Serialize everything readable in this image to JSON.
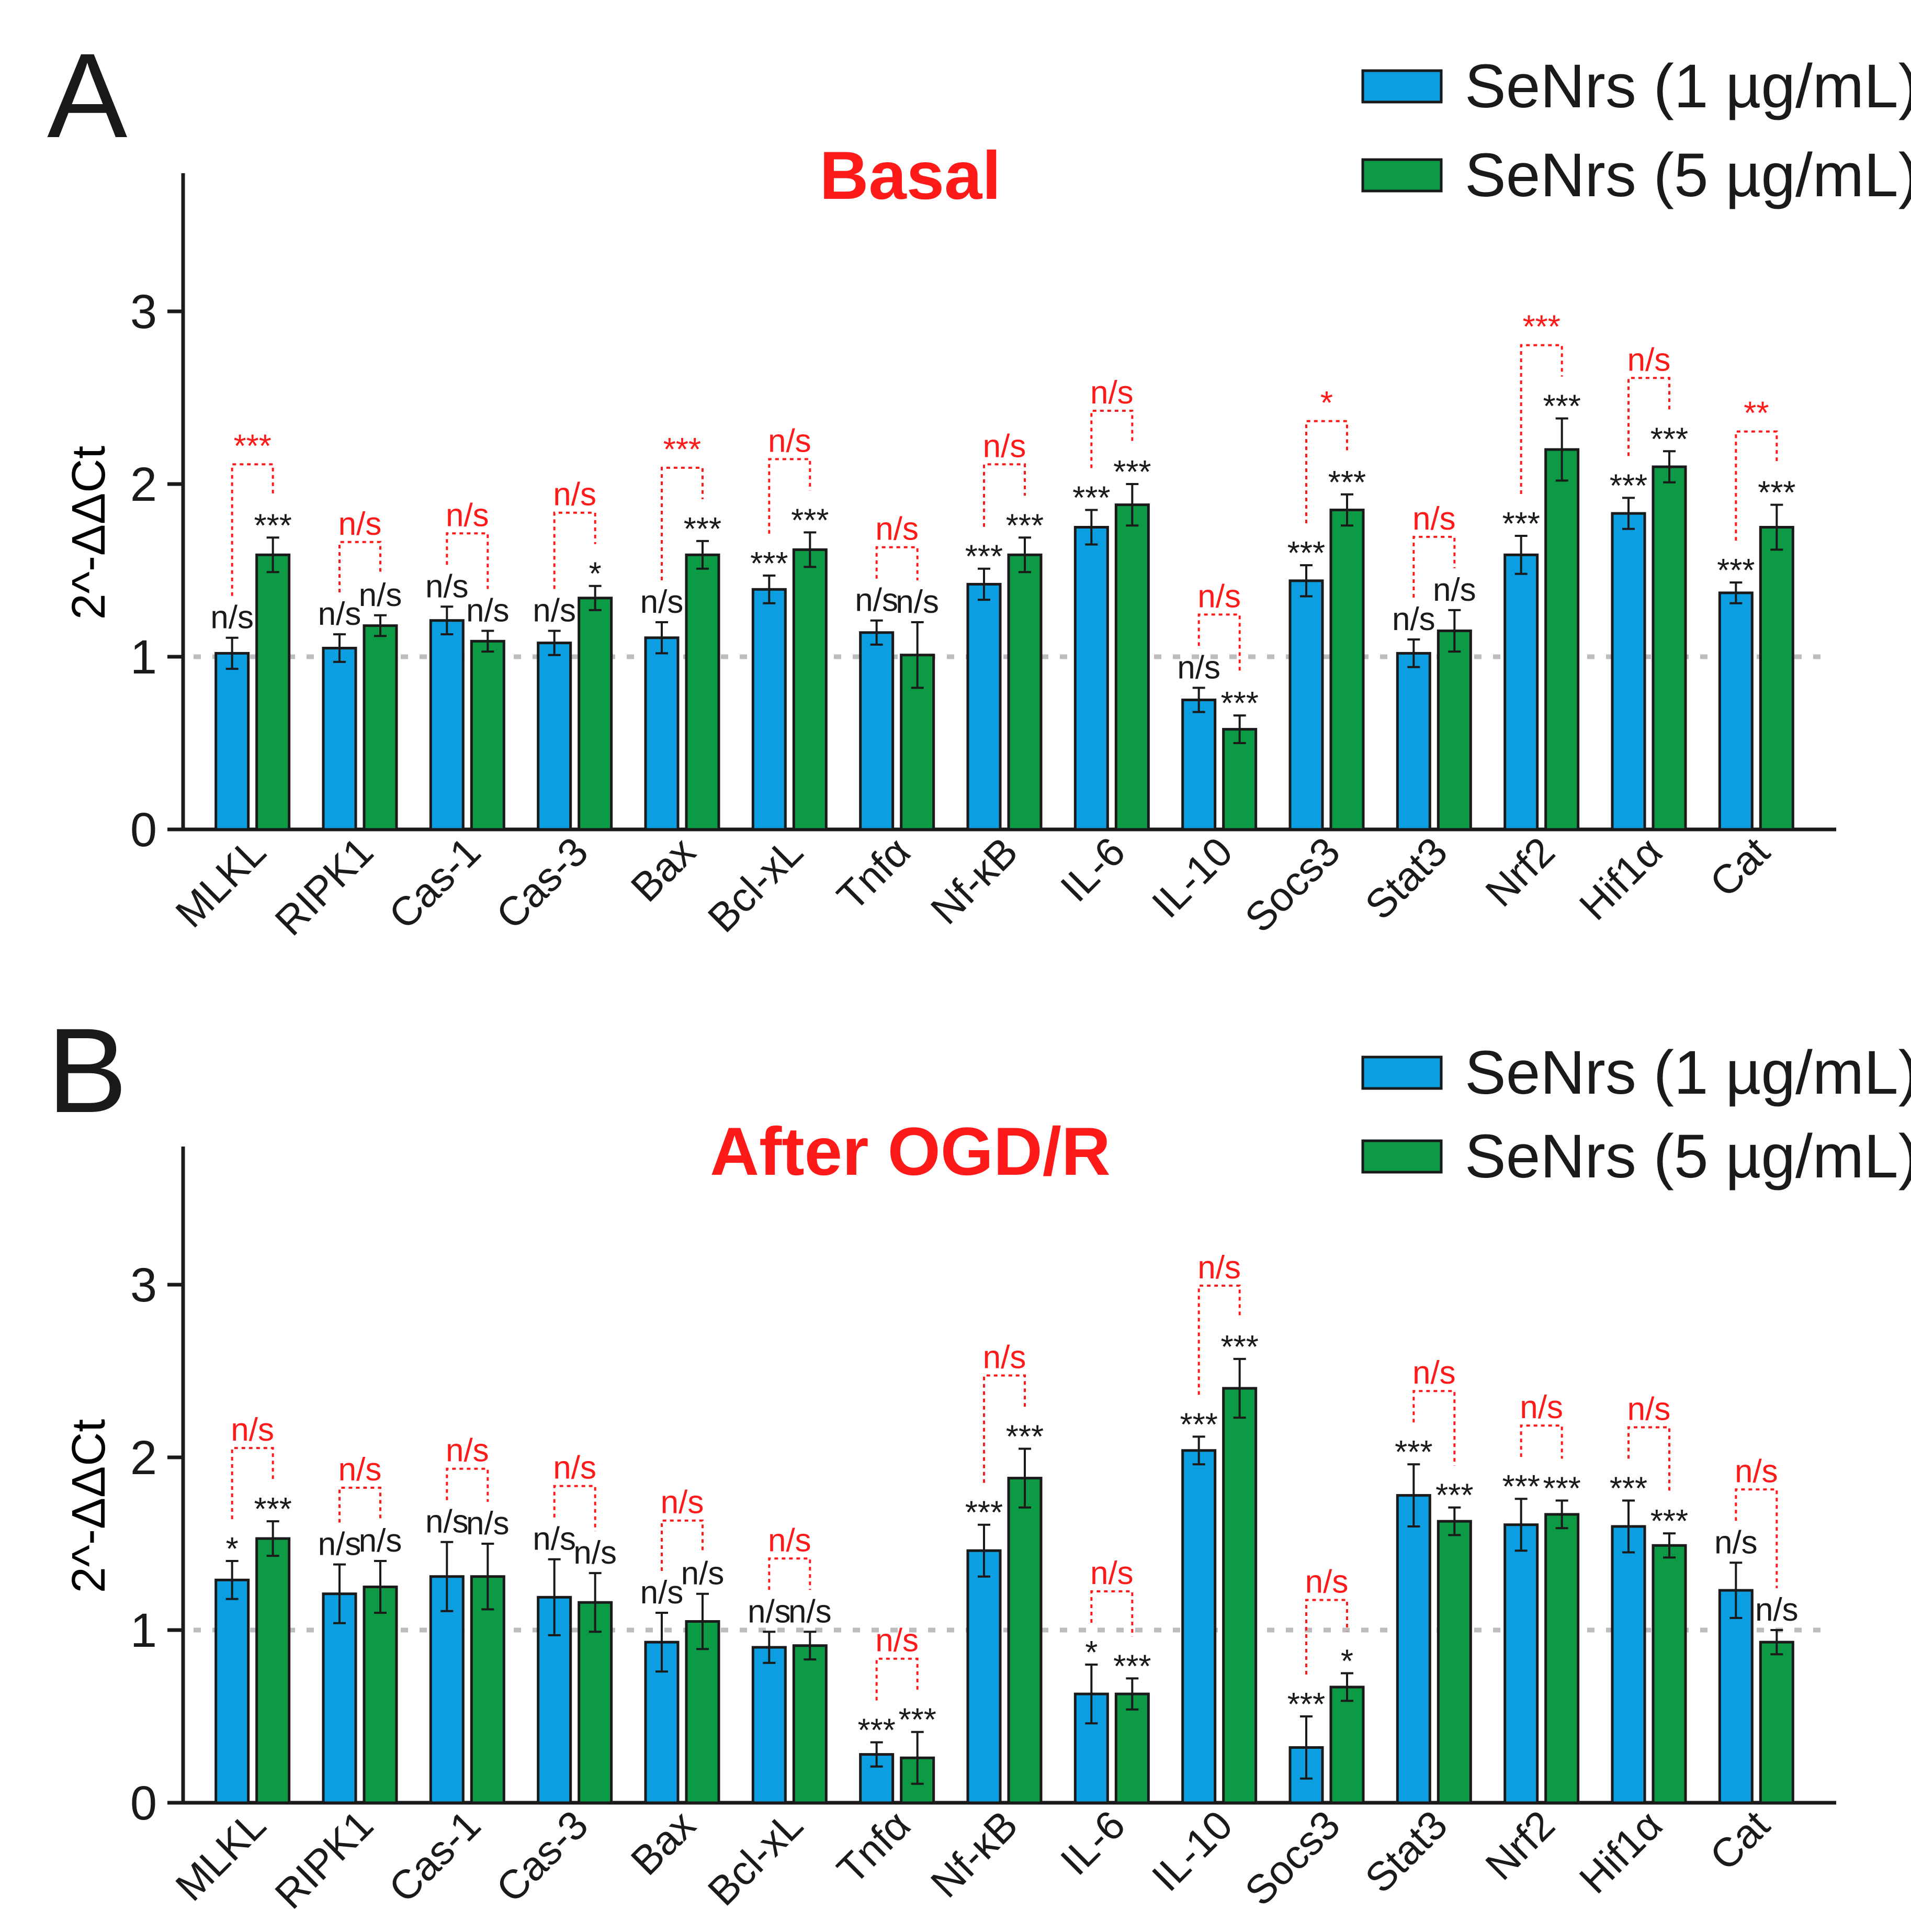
{
  "colors": {
    "series1": "#0b9ee0",
    "series2": "#0c9a44",
    "axis": "#1a1a1a",
    "annotation": "#ff1a1a",
    "reference": "#bdbdbd"
  },
  "chart_data": [
    {
      "type": "bar",
      "panel": "A",
      "title": "Basal",
      "xlabel": "",
      "ylabel": "2^-ΔΔCt",
      "ylim": [
        0,
        3.8
      ],
      "yticks": [
        "0",
        "1",
        "2",
        "3"
      ],
      "reference_line": 1,
      "legend_position": "top-right",
      "categories": [
        "MLKL",
        "RIPK1",
        "Cas-1",
        "Cas-3",
        "Bax",
        "Bcl-xL",
        "Tnfα",
        "Nf-κB",
        "IL-6",
        "IL-10",
        "Socs3",
        "Stat3",
        "Nrf2",
        "Hif1α",
        "Cat"
      ],
      "series": [
        {
          "name": "SeNrs (1 µg/mL)",
          "values": [
            1.02,
            1.05,
            1.21,
            1.08,
            1.11,
            1.39,
            1.14,
            1.42,
            1.75,
            0.75,
            1.44,
            1.02,
            1.59,
            1.83,
            1.37
          ],
          "errors": [
            0.09,
            0.08,
            0.08,
            0.07,
            0.09,
            0.08,
            0.07,
            0.09,
            0.1,
            0.07,
            0.09,
            0.08,
            0.11,
            0.09,
            0.06
          ],
          "significance": [
            "n/s",
            "n/s",
            "n/s",
            "n/s",
            "n/s",
            "***",
            "n/s",
            "***",
            "***",
            "n/s",
            "***",
            "n/s",
            "***",
            "***",
            "***"
          ]
        },
        {
          "name": "SeNrs (5 µg/mL)",
          "values": [
            1.59,
            1.18,
            1.09,
            1.34,
            1.59,
            1.62,
            1.01,
            1.59,
            1.88,
            0.58,
            1.85,
            1.15,
            2.2,
            2.1,
            1.75
          ],
          "errors": [
            0.1,
            0.06,
            0.06,
            0.07,
            0.08,
            0.1,
            0.19,
            0.1,
            0.12,
            0.08,
            0.09,
            0.12,
            0.18,
            0.09,
            0.13
          ],
          "significance": [
            "***",
            "n/s",
            "n/s",
            "*",
            "***",
            "***",
            "n/s",
            "***",
            "***",
            "***",
            "***",
            "n/s",
            "***",
            "***",
            "***"
          ]
        }
      ],
      "comparisons": [
        "***",
        "n/s",
        "n/s",
        "n/s",
        "***",
        "n/s",
        "n/s",
        "n/s",
        "n/s",
        "n/s",
        "*",
        "n/s",
        "***",
        "n/s",
        "**"
      ]
    },
    {
      "type": "bar",
      "panel": "B",
      "title": "After OGD/R",
      "xlabel": "",
      "ylabel": "2^-ΔΔCt",
      "ylim": [
        0,
        3.8
      ],
      "yticks": [
        "0",
        "1",
        "2",
        "3"
      ],
      "reference_line": 1,
      "legend_position": "top-right",
      "categories": [
        "MLKL",
        "RIPK1",
        "Cas-1",
        "Cas-3",
        "Bax",
        "Bcl-xL",
        "Tnfα",
        "Nf-κB",
        "IL-6",
        "IL-10",
        "Socs3",
        "Stat3",
        "Nrf2",
        "Hif1α",
        "Cat"
      ],
      "series": [
        {
          "name": "SeNrs (1 µg/mL)",
          "values": [
            1.29,
            1.21,
            1.31,
            1.19,
            0.93,
            0.9,
            0.28,
            1.46,
            0.63,
            2.04,
            0.32,
            1.78,
            1.61,
            1.6,
            1.23
          ],
          "errors": [
            0.11,
            0.17,
            0.2,
            0.22,
            0.17,
            0.09,
            0.07,
            0.15,
            0.17,
            0.08,
            0.18,
            0.18,
            0.15,
            0.15,
            0.16
          ],
          "significance": [
            "*",
            "n/s",
            "n/s",
            "n/s",
            "n/s",
            "n/s",
            "***",
            "***",
            "*",
            "***",
            "***",
            "***",
            "***",
            "***",
            "n/s"
          ]
        },
        {
          "name": "SeNrs (5 µg/mL)",
          "values": [
            1.53,
            1.25,
            1.31,
            1.16,
            1.05,
            0.91,
            0.26,
            1.88,
            0.63,
            2.4,
            0.67,
            1.63,
            1.67,
            1.49,
            0.93
          ],
          "errors": [
            0.1,
            0.15,
            0.19,
            0.17,
            0.16,
            0.08,
            0.15,
            0.17,
            0.09,
            0.17,
            0.08,
            0.08,
            0.08,
            0.07,
            0.07
          ],
          "significance": [
            "***",
            "n/s",
            "n/s",
            "n/s",
            "n/s",
            "n/s",
            "***",
            "***",
            "***",
            "***",
            "*",
            "***",
            "***",
            "***",
            "n/s"
          ]
        }
      ],
      "comparisons": [
        "n/s",
        "n/s",
        "n/s",
        "n/s",
        "n/s",
        "n/s",
        "n/s",
        "n/s",
        "n/s",
        "n/s",
        "n/s",
        "n/s",
        "n/s",
        "n/s",
        "n/s"
      ]
    }
  ]
}
